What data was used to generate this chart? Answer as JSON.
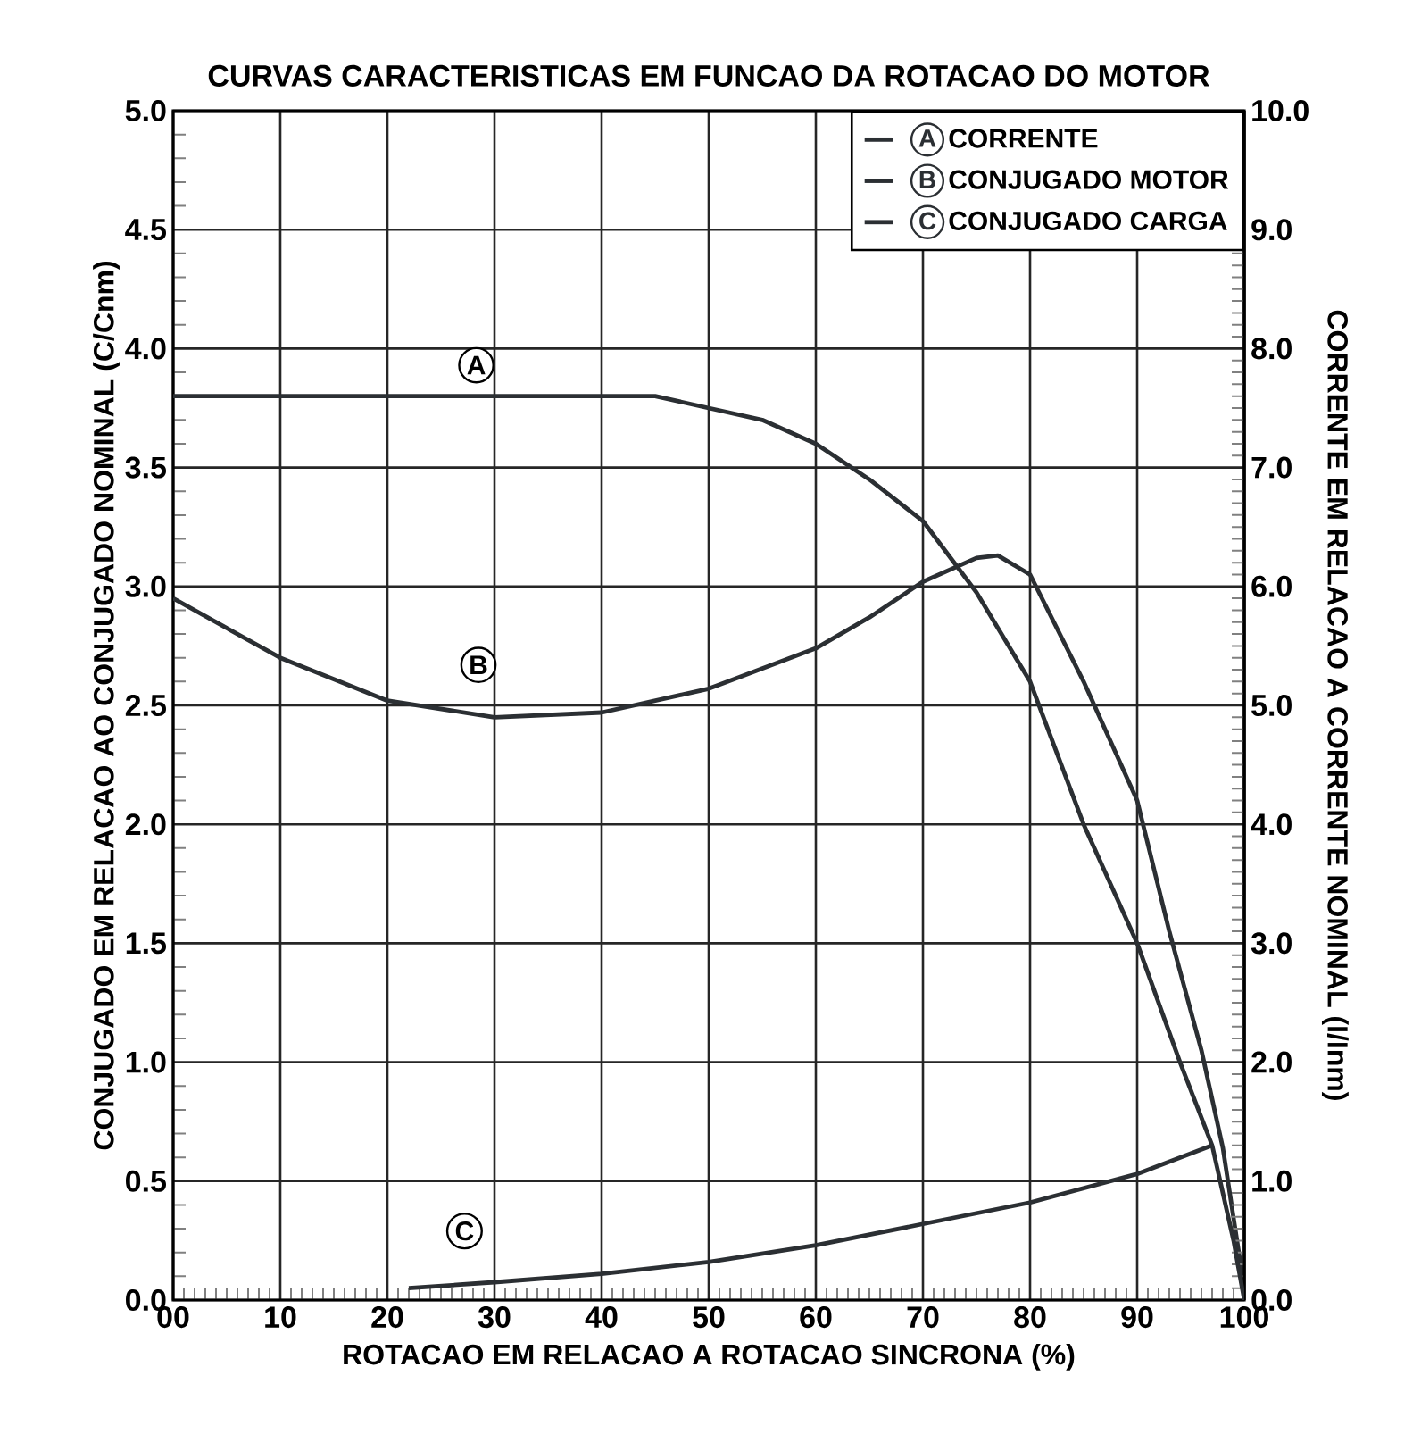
{
  "chart_data": {
    "type": "line",
    "title": "CURVAS CARACTERISTICAS EM FUNCAO DA ROTACAO DO MOTOR",
    "xlabel": "ROTACAO EM RELACAO A ROTACAO SINCRONA (%)",
    "ylabel": "CONJUGADO EM RELACAO AO CONJUGADO NOMINAL (C/Cnm)",
    "y2label": "CORRENTE EM RELACAO A CORRENTE NOMINAL (I/Inm)",
    "xlim": [
      0,
      100
    ],
    "xticks": [
      {
        "value": 0,
        "label": "00"
      },
      10,
      20,
      30,
      40,
      50,
      60,
      70,
      80,
      90,
      100
    ],
    "ylim": [
      0,
      5
    ],
    "yticks": [
      {
        "value": 0,
        "label": "0.0"
      },
      0.5,
      {
        "value": 1,
        "label": "1.0"
      },
      1.5,
      {
        "value": 2,
        "label": "2.0"
      },
      2.5,
      {
        "value": 3,
        "label": "3.0"
      },
      3.5,
      {
        "value": 4,
        "label": "4.0"
      },
      4.5,
      {
        "value": 5,
        "label": "5.0"
      }
    ],
    "y2lim": [
      0,
      10
    ],
    "y2ticks": [
      {
        "value": 0,
        "label": "0.0"
      },
      {
        "value": 1,
        "label": "1.0"
      },
      {
        "value": 2,
        "label": "2.0"
      },
      {
        "value": 3,
        "label": "3.0"
      },
      {
        "value": 4,
        "label": "4.0"
      },
      {
        "value": 5,
        "label": "5.0"
      },
      {
        "value": 6,
        "label": "6.0"
      },
      {
        "value": 7,
        "label": "7.0"
      },
      {
        "value": 8,
        "label": "8.0"
      },
      {
        "value": 9,
        "label": "9.0"
      },
      {
        "value": 10,
        "label": "10.0"
      }
    ],
    "grid": true,
    "legend": "top right",
    "series": [
      {
        "name": "CORRENTE",
        "color": "#2b2f33",
        "axis": "y2",
        "x": [
          0,
          10,
          20,
          30,
          40,
          45,
          50,
          55,
          60,
          65,
          70,
          75,
          80,
          85,
          90,
          94,
          97,
          99,
          100
        ],
        "values": [
          7.6,
          7.6,
          7.6,
          7.6,
          7.6,
          7.6,
          7.5,
          7.4,
          7.2,
          6.9,
          6.55,
          5.95,
          5.2,
          4.0,
          3.0,
          2.0,
          1.3,
          0.5,
          0.0
        ]
      },
      {
        "name": "CONJUGADO MOTOR",
        "color": "#2b2f33",
        "x": [
          0,
          10,
          20,
          30,
          40,
          50,
          60,
          65,
          70,
          75,
          77,
          80,
          85,
          90,
          93,
          96,
          98,
          100
        ],
        "values": [
          2.95,
          2.7,
          2.52,
          2.45,
          2.47,
          2.57,
          2.74,
          2.87,
          3.02,
          3.12,
          3.13,
          3.05,
          2.6,
          2.1,
          1.55,
          1.05,
          0.64,
          0.05
        ]
      },
      {
        "name": "CONJUGADO CARGA",
        "color": "#2b2f33",
        "x": [
          22,
          30,
          40,
          50,
          60,
          70,
          80,
          90,
          97
        ],
        "values": [
          0.05,
          0.075,
          0.11,
          0.16,
          0.23,
          0.32,
          0.41,
          0.53,
          0.65
        ]
      }
    ],
    "annotations": [
      {
        "text": "A",
        "x": 28.3,
        "y": 3.93
      },
      {
        "text": "B",
        "x": 28.5,
        "y": 2.67
      },
      {
        "text": "C",
        "x": 27.2,
        "y": 0.29
      }
    ]
  }
}
